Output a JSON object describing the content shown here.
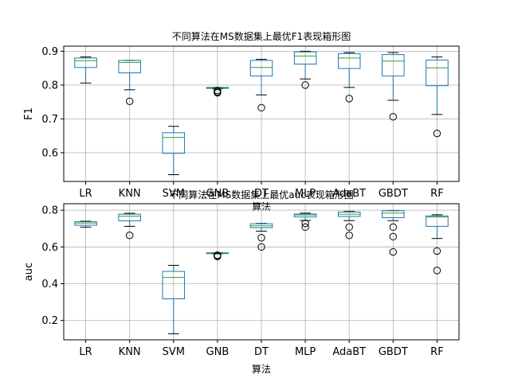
{
  "chart_data": [
    {
      "type": "boxplot",
      "title": "不同算法在MS数据集上最优F1表现箱形图",
      "xlabel": "算法",
      "ylabel": "F1",
      "ylim": [
        0.515,
        0.915
      ],
      "yticks": [
        0.6,
        0.7,
        0.8,
        0.9
      ],
      "grid": true,
      "categories": [
        "LR",
        "KNN",
        "SVM",
        "GNB",
        "DT",
        "MLP",
        "AdaBT",
        "GBDT",
        "RF"
      ],
      "boxes": [
        {
          "whislo": 0.806,
          "q1": 0.852,
          "med": 0.872,
          "q3": 0.88,
          "whishi": 0.883,
          "fliers": []
        },
        {
          "whislo": 0.786,
          "q1": 0.836,
          "med": 0.867,
          "q3": 0.873,
          "whishi": 0.873,
          "fliers": [
            0.752
          ]
        },
        {
          "whislo": 0.535,
          "q1": 0.598,
          "med": 0.645,
          "q3": 0.659,
          "whishi": 0.678,
          "fliers": []
        },
        {
          "whislo": 0.789,
          "q1": 0.79,
          "med": 0.791,
          "q3": 0.793,
          "whishi": 0.793,
          "fliers": [
            0.784,
            0.78,
            0.777
          ]
        },
        {
          "whislo": 0.771,
          "q1": 0.827,
          "med": 0.852,
          "q3": 0.873,
          "whishi": 0.876,
          "fliers": [
            0.733
          ]
        },
        {
          "whislo": 0.818,
          "q1": 0.862,
          "med": 0.886,
          "q3": 0.898,
          "whishi": 0.9,
          "fliers": [
            0.8
          ]
        },
        {
          "whislo": 0.793,
          "q1": 0.849,
          "med": 0.88,
          "q3": 0.893,
          "whishi": 0.896,
          "fliers": [
            0.76
          ]
        },
        {
          "whislo": 0.755,
          "q1": 0.827,
          "med": 0.871,
          "q3": 0.89,
          "whishi": 0.896,
          "fliers": [
            0.706
          ]
        },
        {
          "whislo": 0.713,
          "q1": 0.798,
          "med": 0.851,
          "q3": 0.874,
          "whishi": 0.883,
          "fliers": [
            0.657
          ]
        }
      ]
    },
    {
      "type": "boxplot",
      "title": "不同算法在MS数据集上最优auc表现箱形图",
      "xlabel": "算法",
      "ylabel": "auc",
      "ylim": [
        0.095,
        0.835
      ],
      "yticks": [
        0.2,
        0.4,
        0.6,
        0.8
      ],
      "grid": true,
      "categories": [
        "LR",
        "KNN",
        "SVM",
        "GNB",
        "DT",
        "MLP",
        "AdaBT",
        "GBDT",
        "RF"
      ],
      "boxes": [
        {
          "whislo": 0.708,
          "q1": 0.718,
          "med": 0.73,
          "q3": 0.737,
          "whishi": 0.74,
          "fliers": []
        },
        {
          "whislo": 0.712,
          "q1": 0.742,
          "med": 0.767,
          "q3": 0.778,
          "whishi": 0.783,
          "fliers": [
            0.663
          ]
        },
        {
          "whislo": 0.128,
          "q1": 0.318,
          "med": 0.434,
          "q3": 0.467,
          "whishi": 0.5,
          "fliers": []
        },
        {
          "whislo": 0.563,
          "q1": 0.564,
          "med": 0.566,
          "q3": 0.568,
          "whishi": 0.569,
          "fliers": [
            0.555,
            0.551,
            0.548
          ]
        },
        {
          "whislo": 0.686,
          "q1": 0.705,
          "med": 0.715,
          "q3": 0.726,
          "whishi": 0.728,
          "fliers": [
            0.65,
            0.6
          ]
        },
        {
          "whislo": 0.744,
          "q1": 0.763,
          "med": 0.774,
          "q3": 0.779,
          "whishi": 0.784,
          "fliers": [
            0.728,
            0.708
          ]
        },
        {
          "whislo": 0.743,
          "q1": 0.766,
          "med": 0.778,
          "q3": 0.79,
          "whishi": 0.793,
          "fliers": [
            0.708,
            0.663
          ]
        },
        {
          "whislo": 0.743,
          "q1": 0.759,
          "med": 0.784,
          "q3": 0.797,
          "whishi": 0.798,
          "fliers": [
            0.708,
            0.656,
            0.573
          ]
        },
        {
          "whislo": 0.646,
          "q1": 0.712,
          "med": 0.763,
          "q3": 0.769,
          "whishi": 0.775,
          "fliers": [
            0.578,
            0.472
          ]
        }
      ]
    }
  ]
}
